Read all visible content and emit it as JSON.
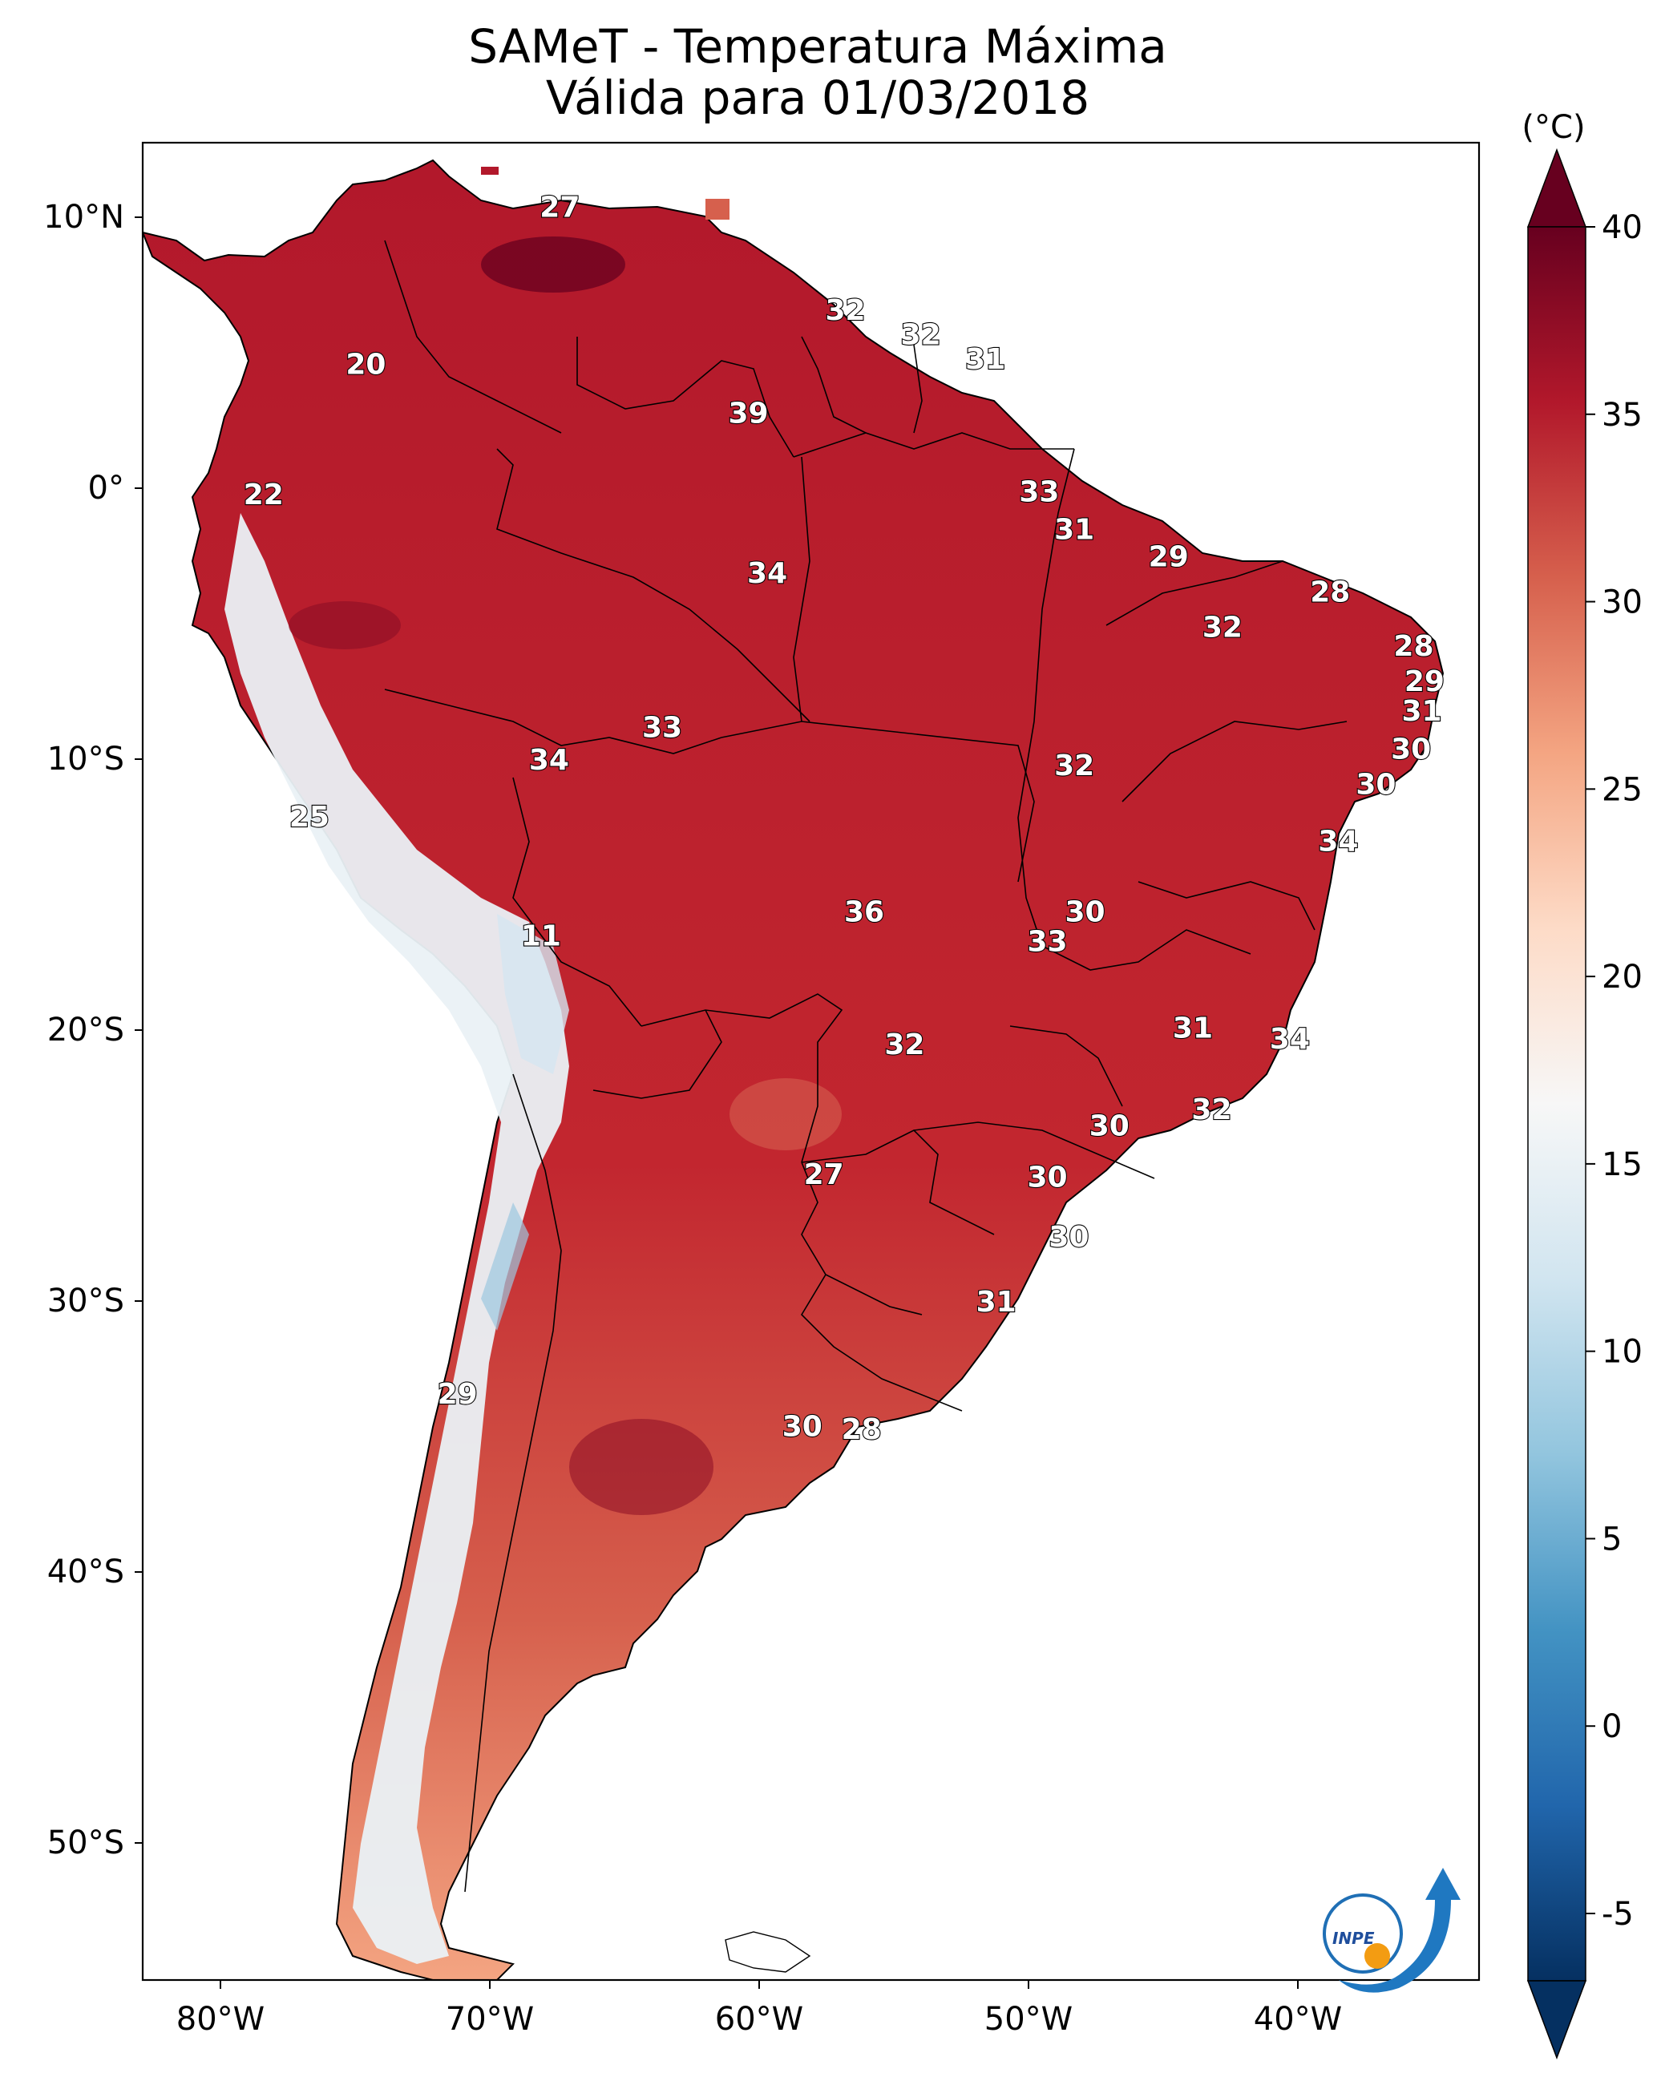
{
  "title": {
    "line1": "SAMeT - Temperatura Máxima",
    "line2": "Válida para 01/03/2018"
  },
  "map": {
    "lon_ticks": [
      "80°W",
      "70°W",
      "60°W",
      "50°W",
      "40°W"
    ],
    "lat_ticks": [
      "10°N",
      "0°",
      "10°S",
      "20°S",
      "30°S",
      "40°S",
      "50°S"
    ],
    "station_values": [
      {
        "lon": -67.4,
        "lat": 10.4,
        "value": "27"
      },
      {
        "lon": -56.8,
        "lat": 6.6,
        "value": "32"
      },
      {
        "lon": -54.0,
        "lat": 5.7,
        "value": "32"
      },
      {
        "lon": -51.6,
        "lat": 4.8,
        "value": "31"
      },
      {
        "lon": -74.6,
        "lat": 4.6,
        "value": "20"
      },
      {
        "lon": -60.4,
        "lat": 2.8,
        "value": "39"
      },
      {
        "lon": -78.4,
        "lat": -0.2,
        "value": "22"
      },
      {
        "lon": -49.6,
        "lat": -0.1,
        "value": "33"
      },
      {
        "lon": -48.3,
        "lat": -1.5,
        "value": "31"
      },
      {
        "lon": -44.8,
        "lat": -2.5,
        "value": "29"
      },
      {
        "lon": -59.7,
        "lat": -3.1,
        "value": "34"
      },
      {
        "lon": -38.8,
        "lat": -3.8,
        "value": "28"
      },
      {
        "lon": -42.8,
        "lat": -5.1,
        "value": "32"
      },
      {
        "lon": -35.7,
        "lat": -5.8,
        "value": "28"
      },
      {
        "lon": -35.3,
        "lat": -7.1,
        "value": "29"
      },
      {
        "lon": -35.4,
        "lat": -8.2,
        "value": "31"
      },
      {
        "lon": -63.6,
        "lat": -8.8,
        "value": "33"
      },
      {
        "lon": -35.8,
        "lat": -9.6,
        "value": "30"
      },
      {
        "lon": -67.8,
        "lat": -10.0,
        "value": "34"
      },
      {
        "lon": -48.3,
        "lat": -10.2,
        "value": "32"
      },
      {
        "lon": -37.1,
        "lat": -10.9,
        "value": "30"
      },
      {
        "lon": -76.7,
        "lat": -12.1,
        "value": "25"
      },
      {
        "lon": -38.5,
        "lat": -13.0,
        "value": "34"
      },
      {
        "lon": -56.1,
        "lat": -15.6,
        "value": "36"
      },
      {
        "lon": -47.9,
        "lat": -15.6,
        "value": "30"
      },
      {
        "lon": -49.3,
        "lat": -16.7,
        "value": "33"
      },
      {
        "lon": -68.1,
        "lat": -16.5,
        "value": "11"
      },
      {
        "lon": -43.9,
        "lat": -19.9,
        "value": "31"
      },
      {
        "lon": -40.3,
        "lat": -20.3,
        "value": "34"
      },
      {
        "lon": -54.6,
        "lat": -20.5,
        "value": "32"
      },
      {
        "lon": -43.2,
        "lat": -22.9,
        "value": "32"
      },
      {
        "lon": -47.0,
        "lat": -23.5,
        "value": "30"
      },
      {
        "lon": -57.6,
        "lat": -25.3,
        "value": "27"
      },
      {
        "lon": -49.3,
        "lat": -25.4,
        "value": "30"
      },
      {
        "lon": -48.5,
        "lat": -27.6,
        "value": "30"
      },
      {
        "lon": -51.2,
        "lat": -30.0,
        "value": "31"
      },
      {
        "lon": -71.2,
        "lat": -33.4,
        "value": "29"
      },
      {
        "lon": -58.4,
        "lat": -34.6,
        "value": "30"
      },
      {
        "lon": -56.2,
        "lat": -34.7,
        "value": "28"
      }
    ]
  },
  "colorbar": {
    "unit_label": "(°C)",
    "ticks": [
      "40",
      "35",
      "30",
      "25",
      "20",
      "15",
      "10",
      "5",
      "0",
      "-5"
    ],
    "range": [
      -5,
      40
    ],
    "colors": [
      "#053061",
      "#2166ac",
      "#4393c3",
      "#92c5de",
      "#d1e5f0",
      "#f7f7f7",
      "#fddbc7",
      "#f4a582",
      "#d6604d",
      "#b2182b",
      "#67001f"
    ]
  },
  "logo": {
    "text": "INPE"
  }
}
